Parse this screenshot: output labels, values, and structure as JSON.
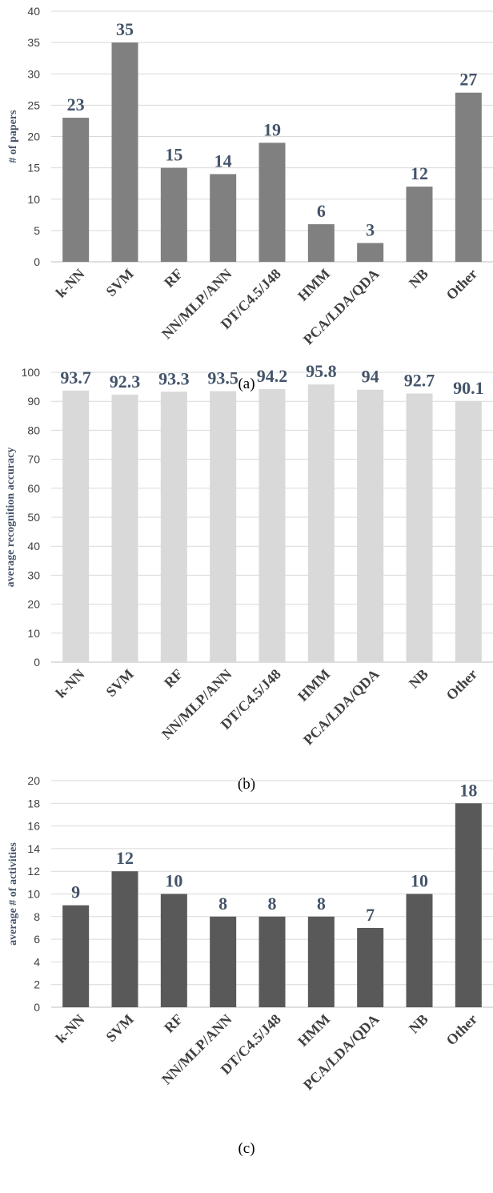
{
  "chart_data": [
    {
      "type": "bar",
      "caption": "(a)",
      "categories": [
        "k-NN",
        "SVM",
        "RF",
        "NN/MLP/ANN",
        "DT/C4.5/J48",
        "HMM",
        "PCA/LDA/QDA",
        "NB",
        "Other"
      ],
      "values": [
        23,
        35,
        15,
        14,
        19,
        6,
        3,
        12,
        27
      ],
      "data_labels": [
        "23",
        "35",
        "15",
        "14",
        "19",
        "6",
        "3",
        "12",
        "27"
      ],
      "ylabel": "# of papers",
      "ylim": [
        0,
        40
      ],
      "yticks": [
        0,
        5,
        10,
        15,
        20,
        25,
        30,
        35,
        40
      ],
      "grid": true,
      "bar_color": "#808080"
    },
    {
      "type": "bar",
      "caption": "(b)",
      "categories": [
        "k-NN",
        "SVM",
        "RF",
        "NN/MLP/ANN",
        "DT/C4.5/J48",
        "HMM",
        "PCA/LDA/QDA",
        "NB",
        "Other"
      ],
      "values": [
        93.7,
        92.3,
        93.3,
        93.5,
        94.2,
        95.8,
        94,
        92.7,
        90.1
      ],
      "data_labels": [
        "93.7",
        "92.3",
        "93.3",
        "93.5",
        "94.2",
        "95.8",
        "94",
        "92.7",
        "90.1"
      ],
      "ylabel": "average recognition accuracy",
      "ylim": [
        0,
        100
      ],
      "yticks": [
        0,
        10,
        20,
        30,
        40,
        50,
        60,
        70,
        80,
        90,
        100
      ],
      "grid": true,
      "bar_color": "#d9d9d9"
    },
    {
      "type": "bar",
      "caption": "(c)",
      "categories": [
        "k-NN",
        "SVM",
        "RF",
        "NN/MLP/ANN",
        "DT/C4.5/J48",
        "HMM",
        "PCA/LDA/QDA",
        "NB",
        "Other"
      ],
      "values": [
        9,
        12,
        10,
        8,
        8,
        8,
        7,
        10,
        18
      ],
      "data_labels": [
        "9",
        "12",
        "10",
        "8",
        "8",
        "8",
        "7",
        "10",
        "18"
      ],
      "ylabel": "average # of activities",
      "ylim": [
        0,
        20
      ],
      "yticks": [
        0,
        2,
        4,
        6,
        8,
        10,
        12,
        14,
        16,
        18,
        20
      ],
      "grid": true,
      "bar_color": "#595959"
    }
  ]
}
